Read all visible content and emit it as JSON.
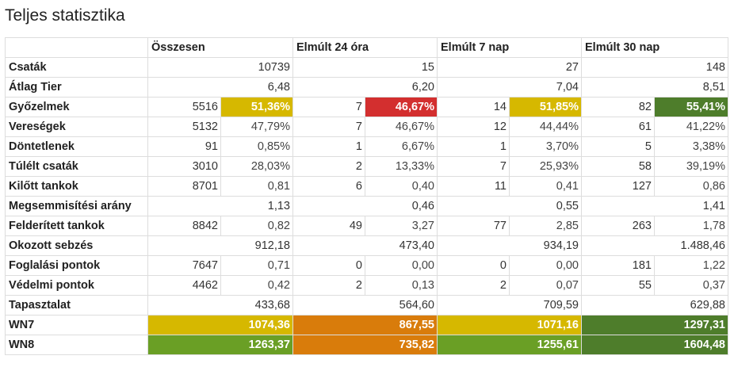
{
  "title": "Teljes statisztika",
  "colors": {
    "yellow": "#d6b800",
    "red": "#d32f2f",
    "dark_green": "#4e7d2b",
    "orange": "#d97c0b",
    "green": "#6a9f25",
    "olive": "#b4ba1f"
  },
  "columns": [
    "Összesen",
    "Elmúlt 24 óra",
    "Elmúlt 7 nap",
    "Elmúlt 30 nap"
  ],
  "rows": [
    {
      "label": "Csaták",
      "cells": [
        {
          "a": "",
          "b": "10739"
        },
        {
          "a": "",
          "b": "15"
        },
        {
          "a": "",
          "b": "27"
        },
        {
          "a": "",
          "b": "148"
        }
      ]
    },
    {
      "label": "Átlag Tier",
      "cells": [
        {
          "a": "",
          "b": "6,48"
        },
        {
          "a": "",
          "b": "6,20"
        },
        {
          "a": "",
          "b": "7,04"
        },
        {
          "a": "",
          "b": "8,51"
        }
      ]
    },
    {
      "label": "Győzelmek",
      "cells": [
        {
          "a": "5516",
          "b": "51,36%",
          "color": "#d6b800"
        },
        {
          "a": "7",
          "b": "46,67%",
          "color": "#d32f2f"
        },
        {
          "a": "14",
          "b": "51,85%",
          "color": "#d6b800"
        },
        {
          "a": "82",
          "b": "55,41%",
          "color": "#4e7d2b"
        }
      ]
    },
    {
      "label": "Vereségek",
      "cells": [
        {
          "a": "5132",
          "b": "47,79%"
        },
        {
          "a": "7",
          "b": "46,67%"
        },
        {
          "a": "12",
          "b": "44,44%"
        },
        {
          "a": "61",
          "b": "41,22%"
        }
      ]
    },
    {
      "label": "Döntetlenek",
      "cells": [
        {
          "a": "91",
          "b": "0,85%"
        },
        {
          "a": "1",
          "b": "6,67%"
        },
        {
          "a": "1",
          "b": "3,70%"
        },
        {
          "a": "5",
          "b": "3,38%"
        }
      ]
    },
    {
      "label": "Túlélt csaták",
      "cells": [
        {
          "a": "3010",
          "b": "28,03%"
        },
        {
          "a": "2",
          "b": "13,33%"
        },
        {
          "a": "7",
          "b": "25,93%"
        },
        {
          "a": "58",
          "b": "39,19%"
        }
      ]
    },
    {
      "label": "Kilőtt tankok",
      "cells": [
        {
          "a": "8701",
          "b": "0,81"
        },
        {
          "a": "6",
          "b": "0,40"
        },
        {
          "a": "11",
          "b": "0,41"
        },
        {
          "a": "127",
          "b": "0,86"
        }
      ]
    },
    {
      "label": "Megsemmisítési arány",
      "cells": [
        {
          "a": "",
          "b": "1,13"
        },
        {
          "a": "",
          "b": "0,46"
        },
        {
          "a": "",
          "b": "0,55"
        },
        {
          "a": "",
          "b": "1,41"
        }
      ]
    },
    {
      "label": "Felderített tankok",
      "cells": [
        {
          "a": "8842",
          "b": "0,82"
        },
        {
          "a": "49",
          "b": "3,27"
        },
        {
          "a": "77",
          "b": "2,85"
        },
        {
          "a": "263",
          "b": "1,78"
        }
      ]
    },
    {
      "label": "Okozott sebzés",
      "cells": [
        {
          "a": "",
          "b": "912,18"
        },
        {
          "a": "",
          "b": "473,40"
        },
        {
          "a": "",
          "b": "934,19"
        },
        {
          "a": "",
          "b": "1.488,46"
        }
      ]
    },
    {
      "label": "Foglalási pontok",
      "cells": [
        {
          "a": "7647",
          "b": "0,71"
        },
        {
          "a": "0",
          "b": "0,00"
        },
        {
          "a": "0",
          "b": "0,00"
        },
        {
          "a": "181",
          "b": "1,22"
        }
      ]
    },
    {
      "label": "Védelmi pontok",
      "cells": [
        {
          "a": "4462",
          "b": "0,42"
        },
        {
          "a": "2",
          "b": "0,13"
        },
        {
          "a": "2",
          "b": "0,07"
        },
        {
          "a": "55",
          "b": "0,37"
        }
      ]
    },
    {
      "label": "Tapasztalat",
      "cells": [
        {
          "a": "",
          "b": "433,68"
        },
        {
          "a": "",
          "b": "564,60"
        },
        {
          "a": "",
          "b": "709,59"
        },
        {
          "a": "",
          "b": "629,88"
        }
      ]
    },
    {
      "label": "WN7",
      "merged": true,
      "cells": [
        {
          "b": "1074,36",
          "color": "#d6b800"
        },
        {
          "b": "867,55",
          "color": "#d97c0b"
        },
        {
          "b": "1071,16",
          "color": "#d6b800"
        },
        {
          "b": "1297,31",
          "color": "#4e7d2b"
        }
      ]
    },
    {
      "label": "WN8",
      "merged": true,
      "cells": [
        {
          "b": "1263,37",
          "color": "#6a9f25"
        },
        {
          "b": "735,82",
          "color": "#d97c0b"
        },
        {
          "b": "1255,61",
          "color": "#6a9f25"
        },
        {
          "b": "1604,48",
          "color": "#4e7d2b"
        }
      ]
    }
  ]
}
